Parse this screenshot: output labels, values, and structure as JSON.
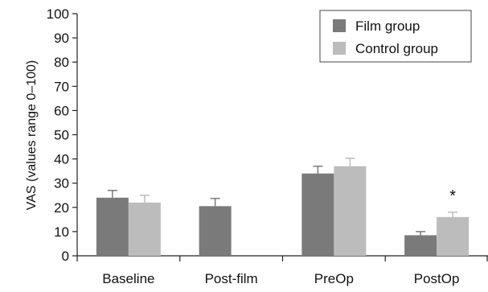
{
  "chart_data": {
    "type": "bar",
    "title": "",
    "xlabel": "",
    "ylabel": "VAS (values range 0–100)",
    "ylim": [
      0,
      100
    ],
    "yticks": [
      0,
      10,
      20,
      30,
      40,
      50,
      60,
      70,
      80,
      90,
      100
    ],
    "categories": [
      "Baseline",
      "Post-film",
      "PreOp",
      "PostOp"
    ],
    "series": [
      {
        "name": "Film group",
        "color": "#7a7a7a",
        "values": [
          24,
          20.5,
          34,
          8.5
        ],
        "errors": [
          3,
          3.2,
          3,
          1.5
        ]
      },
      {
        "name": "Control group",
        "color": "#bcbcbc",
        "values": [
          22,
          null,
          37,
          16
        ],
        "errors": [
          3,
          null,
          3.3,
          2
        ]
      }
    ],
    "grid": false,
    "legend_position": "top-right",
    "annotations": [
      {
        "text": "*",
        "category": "PostOp",
        "series": "Control group"
      }
    ]
  }
}
